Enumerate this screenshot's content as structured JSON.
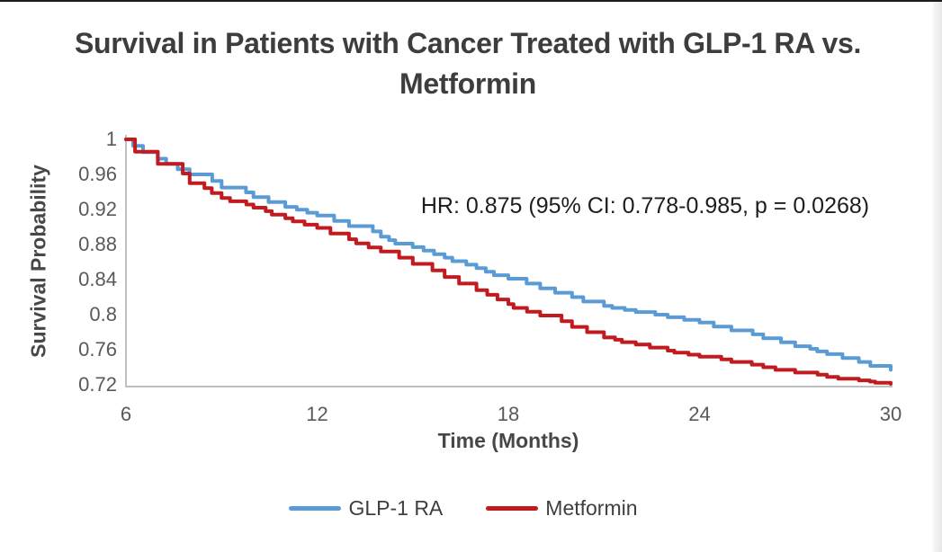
{
  "figure": {
    "title": "Survival in Patients with Cancer Treated with GLP-1 RA vs. Metformin",
    "annotation": "HR: 0.875 (95% CI: 0.778-0.985, p = 0.0268)"
  },
  "chart_data": {
    "type": "line",
    "subtype": "kaplan-meier-survival",
    "title": "Survival in Patients with Cancer Treated with GLP-1 RA vs. Metformin",
    "xlabel": "Time (Months)",
    "ylabel": "Survival Probability",
    "x": [
      6,
      7,
      8,
      9,
      10,
      11,
      12,
      13,
      14,
      15,
      16,
      17,
      18,
      19,
      20,
      21,
      22,
      23,
      24,
      25,
      26,
      27,
      28,
      29,
      30
    ],
    "series": [
      {
        "name": "GLP-1 RA",
        "color": "#5B9BD5",
        "values": [
          1.0,
          0.978,
          0.96,
          0.945,
          0.934,
          0.923,
          0.913,
          0.901,
          0.889,
          0.877,
          0.865,
          0.853,
          0.841,
          0.83,
          0.82,
          0.81,
          0.803,
          0.797,
          0.791,
          0.782,
          0.773,
          0.764,
          0.755,
          0.746,
          0.737
        ]
      },
      {
        "name": "Metformin",
        "color": "#C11A1F",
        "values": [
          1.0,
          0.972,
          0.95,
          0.933,
          0.922,
          0.91,
          0.899,
          0.886,
          0.872,
          0.858,
          0.843,
          0.828,
          0.812,
          0.799,
          0.786,
          0.774,
          0.766,
          0.759,
          0.752,
          0.746,
          0.74,
          0.734,
          0.729,
          0.725,
          0.721
        ]
      }
    ],
    "xticks": [
      "6",
      "12",
      "18",
      "24",
      "30"
    ],
    "yticks": [
      "1",
      "0.96",
      "0.92",
      "0.88",
      "0.84",
      "0.8",
      "0.76",
      "0.72"
    ],
    "xlim": [
      6,
      30
    ],
    "ylim": [
      0.72,
      1
    ],
    "grid": false,
    "legend_position": "bottom",
    "annotation": "HR: 0.875 (95% CI: 0.778-0.985, p = 0.0268)",
    "axis_color": "#BFBFBF"
  }
}
